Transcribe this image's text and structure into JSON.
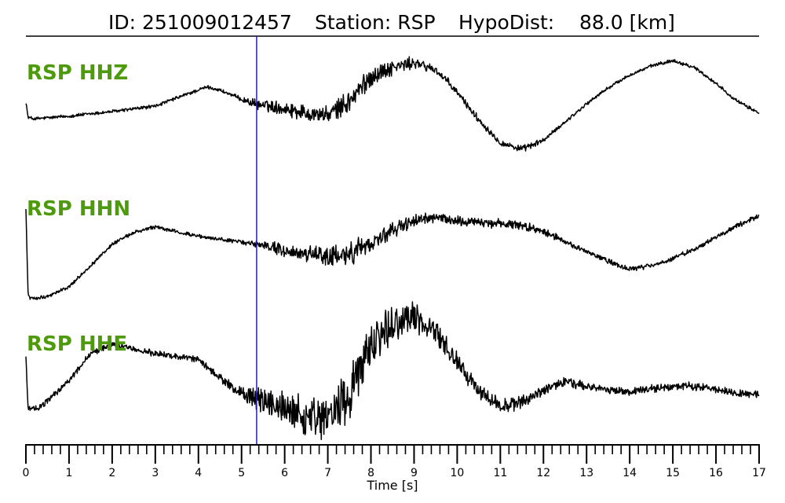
{
  "header": {
    "id_text": "ID: 251009012457",
    "station_text": "Station: RSP",
    "dist_text": "HypoDist:    88.0 [km]"
  },
  "chart_data": {
    "type": "line",
    "title": "ID: 251009012457   Station: RSP   HypoDist:    88.0 [km]",
    "xlabel": "Time [s]",
    "xlim": [
      0,
      17
    ],
    "x_ticks": [
      0,
      1,
      2,
      3,
      4,
      5,
      6,
      7,
      8,
      9,
      10,
      11,
      12,
      13,
      14,
      15,
      16,
      17
    ],
    "x_minor_step": 0.2,
    "pick_time": 5.35,
    "pick_color": "#1f1fcc",
    "trace_color": "#000000",
    "label_color": "#4d9a0c",
    "grid": false,
    "series": [
      {
        "name": "RSP HHZ",
        "t": [
          0,
          0.05,
          0.2,
          1,
          2,
          3,
          3.7,
          4.2,
          4.5,
          5,
          5.3,
          6,
          6.5,
          7,
          7.5,
          8,
          8.5,
          9,
          9.5,
          10,
          10.5,
          11,
          11.5,
          12,
          12.5,
          13,
          13.5,
          14,
          14.5,
          15,
          15.5,
          16,
          16.5,
          17
        ],
        "value": [
          0.1,
          -0.25,
          -0.28,
          -0.22,
          -0.12,
          0.0,
          0.25,
          0.42,
          0.35,
          0.15,
          0.05,
          -0.05,
          -0.15,
          -0.2,
          0.1,
          0.65,
          0.85,
          0.95,
          0.8,
          0.3,
          -0.3,
          -0.8,
          -0.95,
          -0.75,
          -0.35,
          0.05,
          0.4,
          0.68,
          0.88,
          1.0,
          0.85,
          0.5,
          0.1,
          -0.15
        ],
        "noise": [
          0.03,
          0.03,
          0.03,
          0.03,
          0.03,
          0.03,
          0.03,
          0.03,
          0.03,
          0.04,
          0.08,
          0.12,
          0.14,
          0.14,
          0.2,
          0.18,
          0.13,
          0.1,
          0.08,
          0.07,
          0.06,
          0.06,
          0.06,
          0.04,
          0.03,
          0.03,
          0.03,
          0.03,
          0.03,
          0.03,
          0.03,
          0.03,
          0.03,
          0.03
        ]
      },
      {
        "name": "RSP HHN",
        "t": [
          0,
          0.05,
          0.1,
          0.5,
          1,
          1.5,
          2,
          2.5,
          3,
          3.5,
          4,
          5,
          5.5,
          6,
          6.5,
          7,
          7.5,
          8,
          8.5,
          9,
          9.5,
          10,
          11,
          11.5,
          12,
          12.5,
          13,
          13.5,
          14,
          14.5,
          15,
          15.5,
          16,
          16.5,
          17
        ],
        "value": [
          0.9,
          -0.9,
          -1.0,
          -0.95,
          -0.75,
          -0.3,
          0.15,
          0.4,
          0.52,
          0.42,
          0.32,
          0.2,
          0.14,
          0.02,
          -0.06,
          -0.12,
          -0.05,
          0.18,
          0.45,
          0.65,
          0.72,
          0.65,
          0.6,
          0.55,
          0.45,
          0.2,
          0.0,
          -0.2,
          -0.38,
          -0.3,
          -0.15,
          0.05,
          0.3,
          0.55,
          0.75
        ],
        "noise": [
          0.0,
          0.0,
          0.03,
          0.03,
          0.03,
          0.03,
          0.03,
          0.03,
          0.03,
          0.03,
          0.03,
          0.03,
          0.07,
          0.12,
          0.15,
          0.17,
          0.2,
          0.16,
          0.12,
          0.1,
          0.09,
          0.08,
          0.08,
          0.08,
          0.07,
          0.05,
          0.04,
          0.04,
          0.04,
          0.04,
          0.04,
          0.04,
          0.04,
          0.04,
          0.04
        ]
      },
      {
        "name": "RSP HHE",
        "t": [
          0,
          0.05,
          0.3,
          1,
          1.5,
          2,
          3,
          4,
          4.5,
          5,
          5.3,
          6,
          6.5,
          7,
          7.5,
          8,
          8.5,
          9,
          9.5,
          10,
          10.5,
          11,
          11.5,
          12,
          12.5,
          13,
          13.5,
          14,
          14.5,
          15,
          15.5,
          16,
          16.5,
          17
        ],
        "value": [
          0.3,
          -0.55,
          -0.55,
          -0.1,
          0.35,
          0.5,
          0.35,
          0.25,
          -0.05,
          -0.3,
          -0.4,
          -0.55,
          -0.7,
          -0.75,
          -0.3,
          0.5,
          0.85,
          0.92,
          0.7,
          0.2,
          -0.25,
          -0.5,
          -0.45,
          -0.25,
          -0.12,
          -0.18,
          -0.25,
          -0.28,
          -0.22,
          -0.2,
          -0.18,
          -0.25,
          -0.3,
          -0.32
        ],
        "noise": [
          0.0,
          0.04,
          0.04,
          0.04,
          0.04,
          0.04,
          0.04,
          0.04,
          0.05,
          0.08,
          0.14,
          0.2,
          0.25,
          0.25,
          0.38,
          0.34,
          0.25,
          0.2,
          0.16,
          0.12,
          0.1,
          0.1,
          0.08,
          0.06,
          0.06,
          0.05,
          0.05,
          0.05,
          0.05,
          0.05,
          0.05,
          0.05,
          0.05,
          0.05
        ]
      }
    ]
  }
}
